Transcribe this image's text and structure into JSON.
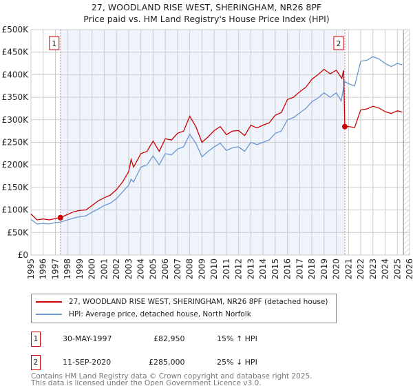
{
  "chart_data": {
    "type": "line",
    "title": "27, WOODLAND RISE WEST, SHERINGHAM, NR26 8PF",
    "subtitle": "Price paid vs. HM Land Registry's House Price Index (HPI)",
    "xlim": [
      1995,
      2026
    ],
    "ylim": [
      0,
      500000
    ],
    "y_ticks": [
      {
        "v": 0,
        "label": "£0"
      },
      {
        "v": 50000,
        "label": "£50K"
      },
      {
        "v": 100000,
        "label": "£100K"
      },
      {
        "v": 150000,
        "label": "£150K"
      },
      {
        "v": 200000,
        "label": "£200K"
      },
      {
        "v": 250000,
        "label": "£250K"
      },
      {
        "v": 300000,
        "label": "£300K"
      },
      {
        "v": 350000,
        "label": "£350K"
      },
      {
        "v": 400000,
        "label": "£400K"
      },
      {
        "v": 450000,
        "label": "£450K"
      },
      {
        "v": 500000,
        "label": "£500K"
      }
    ],
    "x_ticks": [
      "1995",
      "1996",
      "1997",
      "1998",
      "1999",
      "2000",
      "2001",
      "2002",
      "2003",
      "2004",
      "2005",
      "2006",
      "2007",
      "2008",
      "2009",
      "2010",
      "2011",
      "2012",
      "2013",
      "2014",
      "2015",
      "2016",
      "2017",
      "2018",
      "2019",
      "2020",
      "2021",
      "2022",
      "2023",
      "2024",
      "2025",
      "2026"
    ],
    "grid": true,
    "shaded_range": [
      1997.41,
      2020.7
    ],
    "hatched_from": 2025.5,
    "series": [
      {
        "name": "27, WOODLAND RISE WEST, SHERINGHAM, NR26 8PF (detached house)",
        "color": "#cc0000",
        "points": [
          [
            1995,
            91
          ],
          [
            1995.5,
            78
          ],
          [
            1996,
            80
          ],
          [
            1996.5,
            78
          ],
          [
            1997,
            81
          ],
          [
            1997.41,
            82.95
          ],
          [
            1998,
            90
          ],
          [
            1998.5,
            96
          ],
          [
            1999,
            99
          ],
          [
            1999.5,
            100
          ],
          [
            2000,
            110
          ],
          [
            2000.5,
            120
          ],
          [
            2001,
            127
          ],
          [
            2001.5,
            133
          ],
          [
            2002,
            145
          ],
          [
            2002.5,
            162
          ],
          [
            2003,
            185
          ],
          [
            2003.2,
            212
          ],
          [
            2003.4,
            195
          ],
          [
            2004,
            225
          ],
          [
            2004.5,
            230
          ],
          [
            2005,
            253
          ],
          [
            2005.5,
            230
          ],
          [
            2006,
            258
          ],
          [
            2006.5,
            255
          ],
          [
            2007,
            270
          ],
          [
            2007.5,
            275
          ],
          [
            2008,
            308
          ],
          [
            2008.5,
            285
          ],
          [
            2009,
            250
          ],
          [
            2009.5,
            262
          ],
          [
            2010,
            276
          ],
          [
            2010.5,
            285
          ],
          [
            2011,
            267
          ],
          [
            2011.5,
            275
          ],
          [
            2012,
            276
          ],
          [
            2012.5,
            265
          ],
          [
            2013,
            288
          ],
          [
            2013.5,
            282
          ],
          [
            2014,
            288
          ],
          [
            2014.5,
            293
          ],
          [
            2015,
            310
          ],
          [
            2015.5,
            316
          ],
          [
            2016,
            345
          ],
          [
            2016.5,
            350
          ],
          [
            2017,
            362
          ],
          [
            2017.5,
            372
          ],
          [
            2018,
            390
          ],
          [
            2018.5,
            400
          ],
          [
            2019,
            412
          ],
          [
            2019.5,
            402
          ],
          [
            2020,
            410
          ],
          [
            2020.45,
            392
          ],
          [
            2020.6,
            410
          ],
          [
            2020.7,
            285
          ],
          [
            2021,
            285
          ],
          [
            2021.5,
            283
          ],
          [
            2022,
            322
          ],
          [
            2022.5,
            324
          ],
          [
            2023,
            330
          ],
          [
            2023.5,
            326
          ],
          [
            2024,
            318
          ],
          [
            2024.5,
            314
          ],
          [
            2025,
            320
          ],
          [
            2025.4,
            317
          ]
        ]
      },
      {
        "name": "HPI: Average price, detached house, North Norfolk",
        "color": "#6a96d0",
        "points": [
          [
            1995,
            79
          ],
          [
            1995.5,
            69
          ],
          [
            1996,
            70
          ],
          [
            1996.5,
            69
          ],
          [
            1997,
            72
          ],
          [
            1997.4,
            73
          ],
          [
            1998,
            78
          ],
          [
            1998.5,
            82
          ],
          [
            1999,
            85
          ],
          [
            1999.5,
            87
          ],
          [
            2000,
            95
          ],
          [
            2000.5,
            102
          ],
          [
            2001,
            110
          ],
          [
            2001.5,
            115
          ],
          [
            2002,
            125
          ],
          [
            2002.5,
            140
          ],
          [
            2003,
            155
          ],
          [
            2003.2,
            168
          ],
          [
            2003.4,
            162
          ],
          [
            2004,
            195
          ],
          [
            2004.5,
            200
          ],
          [
            2005,
            220
          ],
          [
            2005.5,
            200
          ],
          [
            2006,
            225
          ],
          [
            2006.5,
            222
          ],
          [
            2007,
            235
          ],
          [
            2007.5,
            240
          ],
          [
            2008,
            268
          ],
          [
            2008.5,
            248
          ],
          [
            2009,
            218
          ],
          [
            2009.5,
            230
          ],
          [
            2010,
            240
          ],
          [
            2010.5,
            248
          ],
          [
            2011,
            232
          ],
          [
            2011.5,
            238
          ],
          [
            2012,
            240
          ],
          [
            2012.5,
            230
          ],
          [
            2013,
            250
          ],
          [
            2013.5,
            245
          ],
          [
            2014,
            250
          ],
          [
            2014.5,
            255
          ],
          [
            2015,
            270
          ],
          [
            2015.5,
            275
          ],
          [
            2016,
            300
          ],
          [
            2016.5,
            305
          ],
          [
            2017,
            315
          ],
          [
            2017.5,
            325
          ],
          [
            2018,
            340
          ],
          [
            2018.5,
            348
          ],
          [
            2019,
            360
          ],
          [
            2019.5,
            350
          ],
          [
            2020,
            360
          ],
          [
            2020.4,
            342
          ],
          [
            2020.7,
            385
          ],
          [
            2021,
            380
          ],
          [
            2021.5,
            375
          ],
          [
            2022,
            430
          ],
          [
            2022.5,
            432
          ],
          [
            2023,
            440
          ],
          [
            2023.5,
            435
          ],
          [
            2024,
            425
          ],
          [
            2024.5,
            418
          ],
          [
            2025,
            425
          ],
          [
            2025.4,
            422
          ]
        ]
      }
    ],
    "value_units": "£ thousands",
    "annotations": [
      {
        "label": "1",
        "x": 1997.41,
        "y": 82.95
      },
      {
        "label": "2",
        "x": 2020.7,
        "y": 285
      }
    ]
  },
  "legend": {
    "red": "27, WOODLAND RISE WEST, SHERINGHAM, NR26 8PF (detached house)",
    "blue": "HPI: Average price, detached house, North Norfolk"
  },
  "sales": [
    {
      "num": "1",
      "date": "30-MAY-1997",
      "price": "£82,950",
      "hpi": "15% ↑ HPI"
    },
    {
      "num": "2",
      "date": "11-SEP-2020",
      "price": "£285,000",
      "hpi": "25% ↓ HPI"
    }
  ],
  "footer": {
    "line1": "Contains HM Land Registry data © Crown copyright and database right 2025.",
    "line2": "This data is licensed under the Open Government Licence v3.0."
  }
}
